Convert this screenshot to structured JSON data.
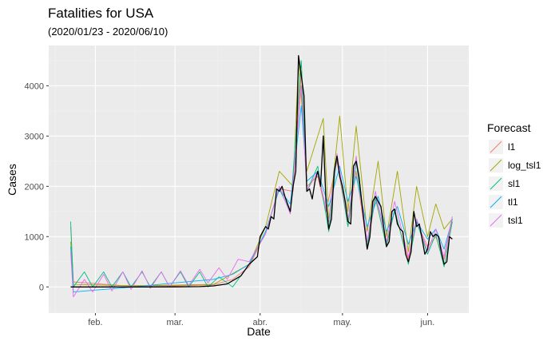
{
  "title": "Fatalities for USA",
  "subtitle": "(2020/01/23 - 2020/06/10)",
  "colors": {
    "panel": "#EBEBEB",
    "grid_major": "#FFFFFF",
    "grid_minor": "#F2F2F2",
    "text": "#000000",
    "tick_text": "#4D4D4D"
  },
  "chart_data": {
    "type": "line",
    "title": "Fatalities for USA",
    "subtitle": "(2020/01/23 - 2020/06/10)",
    "xlabel": "Date",
    "ylabel": "Cases",
    "x_start": "2020-01-23",
    "x_end": "2020-06-10",
    "x_range": [
      "2020-01-15",
      "2020-06-16"
    ],
    "ylim": [
      -520,
      4800
    ],
    "y_ticks": [
      0,
      1000,
      2000,
      3000,
      4000
    ],
    "x_ticks": [
      {
        "date": "2020-02-01",
        "label": "feb."
      },
      {
        "date": "2020-03-01",
        "label": "mar."
      },
      {
        "date": "2020-04-01",
        "label": "abr."
      },
      {
        "date": "2020-05-01",
        "label": "may."
      },
      {
        "date": "2020-06-01",
        "label": "jun."
      }
    ],
    "grid": true,
    "legend": {
      "title": "Forecast",
      "position": "right"
    },
    "actual": {
      "color": "#000000",
      "points": [
        [
          "2020-01-23",
          0
        ],
        [
          "2020-02-15",
          0
        ],
        [
          "2020-03-01",
          1
        ],
        [
          "2020-03-10",
          5
        ],
        [
          "2020-03-15",
          20
        ],
        [
          "2020-03-20",
          60
        ],
        [
          "2020-03-25",
          220
        ],
        [
          "2020-03-28",
          450
        ],
        [
          "2020-03-31",
          600
        ],
        [
          "2020-04-01",
          1000
        ],
        [
          "2020-04-03",
          1200
        ],
        [
          "2020-04-04",
          1150
        ],
        [
          "2020-04-05",
          1400
        ],
        [
          "2020-04-06",
          1350
        ],
        [
          "2020-04-07",
          1950
        ],
        [
          "2020-04-08",
          1900
        ],
        [
          "2020-04-09",
          2000
        ],
        [
          "2020-04-10",
          1800
        ],
        [
          "2020-04-11",
          1650
        ],
        [
          "2020-04-12",
          1500
        ],
        [
          "2020-04-13",
          2000
        ],
        [
          "2020-04-14",
          2300
        ],
        [
          "2020-04-15",
          4600
        ],
        [
          "2020-04-16",
          4200
        ],
        [
          "2020-04-17",
          3800
        ],
        [
          "2020-04-18",
          1900
        ],
        [
          "2020-04-19",
          1950
        ],
        [
          "2020-04-20",
          1750
        ],
        [
          "2020-04-21",
          2100
        ],
        [
          "2020-04-22",
          2300
        ],
        [
          "2020-04-23",
          2000
        ],
        [
          "2020-04-24",
          3000
        ],
        [
          "2020-04-25",
          1700
        ],
        [
          "2020-04-26",
          1150
        ],
        [
          "2020-04-27",
          1350
        ],
        [
          "2020-04-28",
          2300
        ],
        [
          "2020-04-29",
          2600
        ],
        [
          "2020-04-30",
          2200
        ],
        [
          "2020-05-01",
          2000
        ],
        [
          "2020-05-02",
          1700
        ],
        [
          "2020-05-03",
          1300
        ],
        [
          "2020-05-04",
          1250
        ],
        [
          "2020-05-05",
          2400
        ],
        [
          "2020-05-06",
          2500
        ],
        [
          "2020-05-07",
          2200
        ],
        [
          "2020-05-08",
          1700
        ],
        [
          "2020-05-09",
          1200
        ],
        [
          "2020-05-10",
          750
        ],
        [
          "2020-05-11",
          1000
        ],
        [
          "2020-05-12",
          1700
        ],
        [
          "2020-05-13",
          1800
        ],
        [
          "2020-05-14",
          1700
        ],
        [
          "2020-05-15",
          1600
        ],
        [
          "2020-05-16",
          1200
        ],
        [
          "2020-05-17",
          800
        ],
        [
          "2020-05-18",
          900
        ],
        [
          "2020-05-19",
          1500
        ],
        [
          "2020-05-20",
          1550
        ],
        [
          "2020-05-21",
          1250
        ],
        [
          "2020-05-22",
          1150
        ],
        [
          "2020-05-23",
          1100
        ],
        [
          "2020-05-24",
          650
        ],
        [
          "2020-05-25",
          500
        ],
        [
          "2020-05-26",
          700
        ],
        [
          "2020-05-27",
          1500
        ],
        [
          "2020-05-28",
          1200
        ],
        [
          "2020-05-29",
          1250
        ],
        [
          "2020-05-30",
          950
        ],
        [
          "2020-05-31",
          650
        ],
        [
          "2020-06-01",
          750
        ],
        [
          "2020-06-02",
          1100
        ],
        [
          "2020-06-03",
          1000
        ],
        [
          "2020-06-04",
          1050
        ],
        [
          "2020-06-05",
          1000
        ],
        [
          "2020-06-06",
          700
        ],
        [
          "2020-06-07",
          450
        ],
        [
          "2020-06-08",
          500
        ],
        [
          "2020-06-09",
          1000
        ],
        [
          "2020-06-10",
          950
        ]
      ]
    },
    "series": [
      {
        "name": "l1",
        "color": "#F8766D",
        "points": [
          [
            "2020-01-23",
            1200
          ],
          [
            "2020-01-24",
            100
          ],
          [
            "2020-02-10",
            30
          ],
          [
            "2020-03-01",
            20
          ],
          [
            "2020-03-15",
            40
          ],
          [
            "2020-03-22",
            150
          ],
          [
            "2020-03-28",
            400
          ],
          [
            "2020-04-03",
            1100
          ],
          [
            "2020-04-08",
            1950
          ],
          [
            "2020-04-13",
            1900
          ],
          [
            "2020-04-16",
            4300
          ],
          [
            "2020-04-18",
            2000
          ],
          [
            "2020-04-22",
            2200
          ],
          [
            "2020-04-25",
            1500
          ],
          [
            "2020-04-29",
            2500
          ],
          [
            "2020-05-03",
            1200
          ],
          [
            "2020-05-06",
            2300
          ],
          [
            "2020-05-10",
            800
          ],
          [
            "2020-05-13",
            1750
          ],
          [
            "2020-05-17",
            850
          ],
          [
            "2020-05-20",
            1500
          ],
          [
            "2020-05-25",
            550
          ],
          [
            "2020-05-28",
            1300
          ],
          [
            "2020-06-01",
            800
          ],
          [
            "2020-06-04",
            1000
          ],
          [
            "2020-06-07",
            550
          ],
          [
            "2020-06-10",
            1350
          ]
        ]
      },
      {
        "name": "log_tsl1",
        "color": "#A3A500",
        "points": [
          [
            "2020-01-23",
            900
          ],
          [
            "2020-01-24",
            50
          ],
          [
            "2020-02-15",
            20
          ],
          [
            "2020-03-15",
            50
          ],
          [
            "2020-03-28",
            450
          ],
          [
            "2020-04-03",
            1200
          ],
          [
            "2020-04-08",
            2300
          ],
          [
            "2020-04-13",
            2000
          ],
          [
            "2020-04-15",
            4500
          ],
          [
            "2020-04-18",
            2300
          ],
          [
            "2020-04-24",
            3350
          ],
          [
            "2020-04-26",
            1300
          ],
          [
            "2020-04-30",
            3400
          ],
          [
            "2020-05-03",
            1500
          ],
          [
            "2020-05-06",
            3200
          ],
          [
            "2020-05-10",
            1100
          ],
          [
            "2020-05-14",
            2500
          ],
          [
            "2020-05-17",
            1000
          ],
          [
            "2020-05-21",
            2300
          ],
          [
            "2020-05-25",
            700
          ],
          [
            "2020-05-28",
            2000
          ],
          [
            "2020-06-01",
            1000
          ],
          [
            "2020-06-04",
            1650
          ],
          [
            "2020-06-07",
            1150
          ],
          [
            "2020-06-10",
            1350
          ]
        ]
      },
      {
        "name": "sl1",
        "color": "#00BF7D",
        "points": [
          [
            "2020-01-23",
            1300
          ],
          [
            "2020-01-24",
            0
          ],
          [
            "2020-01-28",
            300
          ],
          [
            "2020-01-31",
            0
          ],
          [
            "2020-02-04",
            300
          ],
          [
            "2020-02-07",
            0
          ],
          [
            "2020-02-11",
            300
          ],
          [
            "2020-02-14",
            0
          ],
          [
            "2020-02-18",
            300
          ],
          [
            "2020-02-21",
            0
          ],
          [
            "2020-02-25",
            300
          ],
          [
            "2020-02-28",
            0
          ],
          [
            "2020-03-03",
            300
          ],
          [
            "2020-03-06",
            0
          ],
          [
            "2020-03-10",
            300
          ],
          [
            "2020-03-13",
            0
          ],
          [
            "2020-03-17",
            200
          ],
          [
            "2020-03-22",
            0
          ],
          [
            "2020-03-28",
            450
          ],
          [
            "2020-04-03",
            1100
          ],
          [
            "2020-04-08",
            1950
          ],
          [
            "2020-04-12",
            1500
          ],
          [
            "2020-04-16",
            4500
          ],
          [
            "2020-04-18",
            1900
          ],
          [
            "2020-04-22",
            2400
          ],
          [
            "2020-04-26",
            1100
          ],
          [
            "2020-04-29",
            2600
          ],
          [
            "2020-05-03",
            1200
          ],
          [
            "2020-05-06",
            2500
          ],
          [
            "2020-05-10",
            800
          ],
          [
            "2020-05-13",
            1800
          ],
          [
            "2020-05-17",
            800
          ],
          [
            "2020-05-20",
            1550
          ],
          [
            "2020-05-25",
            450
          ],
          [
            "2020-05-28",
            1300
          ],
          [
            "2020-06-01",
            650
          ],
          [
            "2020-06-04",
            1050
          ],
          [
            "2020-06-07",
            400
          ],
          [
            "2020-06-10",
            1300
          ]
        ]
      },
      {
        "name": "tl1",
        "color": "#00B0F6",
        "points": [
          [
            "2020-01-23",
            800
          ],
          [
            "2020-01-24",
            -100
          ],
          [
            "2020-02-15",
            0
          ],
          [
            "2020-03-01",
            80
          ],
          [
            "2020-03-15",
            150
          ],
          [
            "2020-03-22",
            250
          ],
          [
            "2020-03-28",
            450
          ],
          [
            "2020-04-03",
            1100
          ],
          [
            "2020-04-08",
            1950
          ],
          [
            "2020-04-12",
            1650
          ],
          [
            "2020-04-16",
            3600
          ],
          [
            "2020-04-18",
            2100
          ],
          [
            "2020-04-22",
            2300
          ],
          [
            "2020-04-26",
            1600
          ],
          [
            "2020-04-30",
            2400
          ],
          [
            "2020-05-03",
            1700
          ],
          [
            "2020-05-06",
            2200
          ],
          [
            "2020-05-10",
            1200
          ],
          [
            "2020-05-14",
            1800
          ],
          [
            "2020-05-17",
            1100
          ],
          [
            "2020-05-21",
            1600
          ],
          [
            "2020-05-25",
            850
          ],
          [
            "2020-05-28",
            1300
          ],
          [
            "2020-06-01",
            950
          ],
          [
            "2020-06-04",
            1150
          ],
          [
            "2020-06-07",
            750
          ],
          [
            "2020-06-10",
            1350
          ]
        ]
      },
      {
        "name": "tsl1",
        "color": "#E76BF3",
        "points": [
          [
            "2020-01-23",
            700
          ],
          [
            "2020-01-24",
            -200
          ],
          [
            "2020-01-28",
            150
          ],
          [
            "2020-01-31",
            -100
          ],
          [
            "2020-02-04",
            250
          ],
          [
            "2020-02-07",
            -80
          ],
          [
            "2020-02-11",
            300
          ],
          [
            "2020-02-14",
            -50
          ],
          [
            "2020-02-18",
            320
          ],
          [
            "2020-02-21",
            -30
          ],
          [
            "2020-02-25",
            300
          ],
          [
            "2020-02-28",
            0
          ],
          [
            "2020-03-03",
            320
          ],
          [
            "2020-03-06",
            30
          ],
          [
            "2020-03-10",
            350
          ],
          [
            "2020-03-13",
            80
          ],
          [
            "2020-03-17",
            380
          ],
          [
            "2020-03-20",
            150
          ],
          [
            "2020-03-24",
            550
          ],
          [
            "2020-03-28",
            500
          ],
          [
            "2020-04-03",
            1050
          ],
          [
            "2020-04-08",
            2000
          ],
          [
            "2020-04-12",
            1450
          ],
          [
            "2020-04-16",
            4000
          ],
          [
            "2020-04-18",
            1900
          ],
          [
            "2020-04-22",
            2300
          ],
          [
            "2020-04-26",
            1300
          ],
          [
            "2020-04-29",
            2650
          ],
          [
            "2020-05-03",
            1300
          ],
          [
            "2020-05-06",
            2600
          ],
          [
            "2020-05-10",
            900
          ],
          [
            "2020-05-13",
            1900
          ],
          [
            "2020-05-17",
            900
          ],
          [
            "2020-05-20",
            1700
          ],
          [
            "2020-05-25",
            600
          ],
          [
            "2020-05-28",
            1350
          ],
          [
            "2020-06-01",
            700
          ],
          [
            "2020-06-04",
            1150
          ],
          [
            "2020-06-07",
            600
          ],
          [
            "2020-06-10",
            1400
          ]
        ]
      }
    ]
  }
}
